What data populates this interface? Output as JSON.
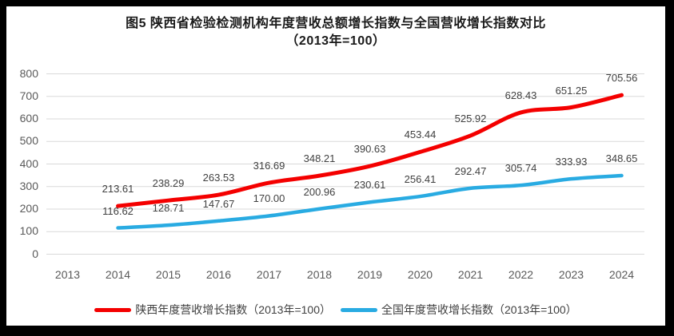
{
  "title": {
    "line1": "图5  陕西省检验检测机构年度营收总额增长指数与全国营收增长指数对比",
    "line2": "（2013年=100）"
  },
  "chart_data": {
    "type": "line",
    "title": "图5 陕西省检验检测机构年度营收总额增长指数与全国营收增长指数对比（2013年=100）",
    "categories": [
      "2013",
      "2014",
      "2015",
      "2016",
      "2017",
      "2018",
      "2019",
      "2020",
      "2021",
      "2022",
      "2023",
      "2024"
    ],
    "series": [
      {
        "key": "shaanxi",
        "name": "陕西年度营收增长指数（2013年=100）",
        "color": "#f40000",
        "line_width": 5,
        "start_category": "2014",
        "values": [
          213.61,
          238.29,
          263.53,
          316.69,
          348.21,
          390.63,
          453.44,
          525.92,
          628.43,
          651.25,
          705.56
        ],
        "labels": [
          "213.61",
          "238.29",
          "263.53",
          "316.69",
          "348.21",
          "390.63",
          "453.44",
          "525.92",
          "628.43",
          "651.25",
          "705.56"
        ]
      },
      {
        "key": "national",
        "name": "全国年度营收增长指数（2013年=100）",
        "color": "#29abe2",
        "line_width": 4.5,
        "start_category": "2014",
        "values": [
          116.62,
          128.71,
          147.67,
          170.0,
          200.96,
          230.61,
          256.41,
          292.47,
          305.74,
          333.93,
          348.65
        ],
        "labels": [
          "116.62",
          "128.71",
          "147.67",
          "170.00",
          "200.96",
          "230.61",
          "256.41",
          "292.47",
          "305.74",
          "333.93",
          "348.65"
        ]
      }
    ],
    "ylim": [
      0,
      800
    ],
    "ytick_step": 100,
    "yticks": [
      "0",
      "100",
      "200",
      "300",
      "400",
      "500",
      "600",
      "700",
      "800"
    ],
    "grid": "horizontal",
    "gridline_color": "#d9d9d9",
    "tick_label_color": "#595959",
    "data_label_color": "#404040",
    "legend_position": "bottom"
  }
}
